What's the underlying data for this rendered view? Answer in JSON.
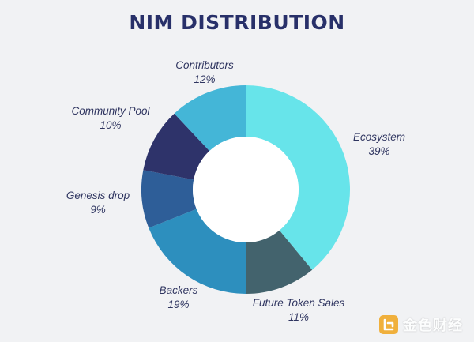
{
  "chart_data": {
    "type": "pie",
    "variant": "donut",
    "title": "NIM DISTRIBUTION",
    "slices": [
      {
        "label": "Ecosystem",
        "value": 39,
        "display": "39%",
        "color": "#67e4ea"
      },
      {
        "label": "Future Token Sales",
        "value": 11,
        "display": "11%",
        "color": "#43636d"
      },
      {
        "label": "Backers",
        "value": 19,
        "display": "19%",
        "color": "#2d8fbe"
      },
      {
        "label": "Genesis drop",
        "value": 9,
        "display": "9%",
        "color": "#2e5e98"
      },
      {
        "label": "Community Pool",
        "value": 10,
        "display": "10%",
        "color": "#2e336a"
      },
      {
        "label": "Contributors",
        "value": 12,
        "display": "12%",
        "color": "#44b6d7"
      }
    ],
    "start": "top",
    "direction": "clockwise"
  },
  "watermark": {
    "text": "金色财经",
    "icon": "logo-mark",
    "color": "#f0a51c"
  }
}
